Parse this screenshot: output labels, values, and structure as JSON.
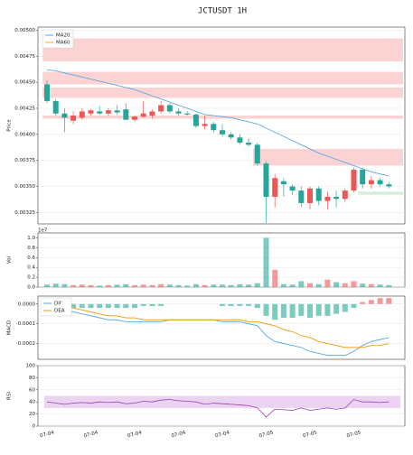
{
  "chart_data": [
    {
      "type": "candlestick",
      "title": "JCTUSDT  1H",
      "ylabel": "Price",
      "up_color": "#eb5757",
      "down_color": "#26a69a",
      "open": [
        0.00448,
        0.00432,
        0.0042,
        0.00413,
        0.00416,
        0.0042,
        0.00422,
        0.0042,
        0.00423,
        0.00424,
        0.00414,
        0.00417,
        0.00418,
        0.00422,
        0.00428,
        0.00422,
        0.0042,
        0.00419,
        0.00408,
        0.0041,
        0.00404,
        0.004,
        0.00397,
        0.00392,
        0.0039,
        0.00372,
        0.0034,
        0.00355,
        0.0035,
        0.00346,
        0.00334,
        0.00348,
        0.00336,
        0.0034,
        0.00338,
        0.00346,
        0.00366,
        0.00352,
        0.00356,
        0.00352
      ],
      "high": [
        0.00452,
        0.00434,
        0.00425,
        0.00422,
        0.00425,
        0.00424,
        0.00427,
        0.00425,
        0.00428,
        0.0043,
        0.00418,
        0.00432,
        0.00424,
        0.00432,
        0.0043,
        0.00425,
        0.00422,
        0.0042,
        0.00418,
        0.00412,
        0.0041,
        0.00402,
        0.004,
        0.00396,
        0.00392,
        0.00374,
        0.00362,
        0.00358,
        0.00352,
        0.0035,
        0.0035,
        0.0035,
        0.00345,
        0.00346,
        0.00348,
        0.00368,
        0.00368,
        0.0036,
        0.00358,
        0.00354
      ],
      "low": [
        0.0043,
        0.00418,
        0.00402,
        0.0041,
        0.00414,
        0.00418,
        0.00419,
        0.00418,
        0.00419,
        0.00414,
        0.00412,
        0.00416,
        0.00415,
        0.0042,
        0.0042,
        0.00418,
        0.00418,
        0.00406,
        0.00405,
        0.00402,
        0.00398,
        0.00395,
        0.0039,
        0.00388,
        0.0037,
        0.00315,
        0.0033,
        0.0034,
        0.00342,
        0.0033,
        0.00328,
        0.00332,
        0.00328,
        0.0033,
        0.00335,
        0.00344,
        0.00348,
        0.00348,
        0.0035,
        0.00348
      ],
      "close": [
        0.00432,
        0.0042,
        0.00416,
        0.00418,
        0.00422,
        0.00423,
        0.0042,
        0.00423,
        0.00421,
        0.00414,
        0.00417,
        0.0042,
        0.00422,
        0.00428,
        0.00422,
        0.0042,
        0.00419,
        0.00408,
        0.0041,
        0.00404,
        0.004,
        0.00397,
        0.00392,
        0.0039,
        0.00372,
        0.0034,
        0.00358,
        0.00352,
        0.00346,
        0.00334,
        0.00348,
        0.00336,
        0.0034,
        0.00338,
        0.00346,
        0.00366,
        0.00352,
        0.00356,
        0.00352,
        0.0035
      ],
      "series": [
        {
          "name": "MA20",
          "color": "#5aa9e6",
          "values": [
            0.00462,
            0.00461,
            0.00459,
            0.00457,
            0.00455,
            0.00453,
            0.00451,
            0.00449,
            0.00447,
            0.00445,
            0.00443,
            0.0044,
            0.00437,
            0.00434,
            0.00431,
            0.00428,
            0.00425,
            0.00422,
            0.00419,
            0.00418,
            0.00417,
            0.00416,
            0.00414,
            0.00412,
            0.0041,
            0.00406,
            0.00402,
            0.00398,
            0.00394,
            0.0039,
            0.00386,
            0.00382,
            0.00379,
            0.00376,
            0.00373,
            0.0037,
            0.00367,
            0.00364,
            0.00362,
            0.0036
          ]
        },
        {
          "name": "MA60",
          "color": "#f5a623",
          "values": [
            null,
            null,
            null,
            null,
            null,
            null,
            null,
            null,
            null,
            null,
            null,
            null,
            null,
            null,
            null,
            null,
            null,
            null,
            null,
            null,
            null,
            null,
            null,
            null,
            null,
            null,
            null,
            null,
            null,
            null,
            null,
            null,
            null,
            null,
            null,
            null,
            null,
            null,
            null,
            null
          ]
        }
      ],
      "zones": [
        {
          "range": [
            0.0047,
            0.00492
          ],
          "from": 0,
          "color": "#fbd3d3"
        },
        {
          "range": [
            0.00448,
            0.0046
          ],
          "from": 0,
          "color": "#fbd3d3"
        },
        {
          "range": [
            0.00435,
            0.00445
          ],
          "from": 0,
          "color": "#fbd3d3"
        },
        {
          "range": [
            0.00415,
            0.00418
          ],
          "from": 0,
          "color": "#fbd3d3"
        },
        {
          "range": [
            0.0037,
            0.00386
          ],
          "from": 24,
          "color": "#fbd3d3"
        },
        {
          "range": [
            0.00342,
            0.00345
          ],
          "from": 36,
          "color": "#d3efd9"
        }
      ],
      "ylim": [
        0.00314,
        0.00503
      ],
      "yticks": [
        0.00325,
        {
          "value": 0.0035,
          "label": "0.00350"
        },
        0.00375,
        {
          "value": 0.004,
          "label": "0.00400"
        },
        0.00425,
        {
          "value": 0.0045,
          "label": "0.00450"
        },
        0.00475,
        {
          "value": 0.005,
          "label": "0.00500"
        }
      ],
      "grid": true,
      "legend": "upper left"
    },
    {
      "type": "bar",
      "ylabel": "Vol",
      "offset_label": "1e7",
      "values": [
        0.05,
        0.07,
        0.06,
        0.04,
        0.05,
        0.04,
        0.03,
        0.04,
        0.05,
        0.06,
        0.04,
        0.05,
        0.04,
        0.06,
        0.05,
        0.04,
        0.03,
        0.06,
        0.04,
        0.05,
        0.05,
        0.04,
        0.06,
        0.05,
        0.08,
        1.0,
        0.35,
        0.06,
        0.05,
        0.12,
        0.08,
        0.06,
        0.15,
        0.1,
        0.08,
        0.12,
        0.07,
        0.06,
        0.05,
        0.04
      ],
      "ylim": [
        0,
        1.1
      ],
      "yticks": [
        {
          "value": 0,
          "label": "0.0"
        },
        0.2,
        0.4,
        0.6,
        0.8,
        {
          "value": 1,
          "label": "1.0"
        }
      ],
      "grid": true
    },
    {
      "type": "macd",
      "ylabel": "MACD",
      "series": [
        {
          "name": "Dif",
          "color": "#5aa9e6",
          "values": [
            -1e-05,
            -2e-05,
            -3e-05,
            -4e-05,
            -5e-05,
            -6e-05,
            -7e-05,
            -8e-05,
            -8e-05,
            -9e-05,
            -9e-05,
            -9e-05,
            -9e-05,
            -9e-05,
            -8e-05,
            -8e-05,
            -8e-05,
            -8e-05,
            -8e-05,
            -8e-05,
            -9e-05,
            -9e-05,
            -9e-05,
            -0.0001,
            -0.00011,
            -0.00016,
            -0.00019,
            -0.0002,
            -0.00021,
            -0.00022,
            -0.00024,
            -0.00025,
            -0.00026,
            -0.00026,
            -0.00026,
            -0.00024,
            -0.00021,
            -0.00019,
            -0.00018,
            -0.00017
          ]
        },
        {
          "name": "DEA",
          "color": "#f39c12",
          "values": [
            1e-05,
            0,
            -1e-05,
            -2e-05,
            -3e-05,
            -4e-05,
            -5e-05,
            -6e-05,
            -6e-05,
            -7e-05,
            -7e-05,
            -8e-05,
            -8e-05,
            -8e-05,
            -8e-05,
            -8e-05,
            -8e-05,
            -8e-05,
            -8e-05,
            -8e-05,
            -8e-05,
            -8e-05,
            -8e-05,
            -9e-05,
            -9e-05,
            -0.0001,
            -0.00011,
            -0.00013,
            -0.00014,
            -0.00016,
            -0.00017,
            -0.00019,
            -0.0002,
            -0.00021,
            -0.00022,
            -0.00022,
            -0.00022,
            -0.00021,
            -0.00021,
            -0.0002
          ]
        }
      ],
      "histogram": [
        -2e-05,
        -2e-05,
        -2e-05,
        -2e-05,
        -2e-05,
        -2e-05,
        -2e-05,
        -2e-05,
        -2e-05,
        -2e-05,
        -2e-05,
        -1e-05,
        -1e-05,
        -1e-05,
        0,
        0,
        0,
        0,
        0,
        0,
        -1e-05,
        -1e-05,
        -1e-05,
        -1e-05,
        -2e-05,
        -6e-05,
        -8e-05,
        -7e-05,
        -7e-05,
        -6e-05,
        -7e-05,
        -6e-05,
        -6e-05,
        -5e-05,
        -4e-05,
        -2e-05,
        1e-05,
        2e-05,
        3e-05,
        3e-05
      ],
      "hist_up_color": "#ef9a9a",
      "hist_down_color": "#7ccbbf",
      "ylim": [
        -0.00028,
        4e-05
      ],
      "yticks": [
        -0.0002,
        -0.0001,
        {
          "value": 0,
          "label": "0.0000"
        }
      ],
      "grid": true,
      "legend": "upper left"
    },
    {
      "type": "line",
      "ylabel": "RSI",
      "categories": [
        "07-04",
        null,
        null,
        null,
        null,
        "07-04",
        null,
        null,
        null,
        null,
        "07-04",
        null,
        null,
        null,
        null,
        "07-04",
        null,
        null,
        null,
        null,
        "07-04",
        null,
        null,
        null,
        null,
        "07-05",
        null,
        null,
        null,
        null,
        "07-05",
        null,
        null,
        null,
        null,
        "07-05",
        null,
        null,
        null,
        null
      ],
      "values": [
        40,
        38,
        36,
        38,
        39,
        38,
        40,
        39,
        40,
        37,
        38,
        41,
        40,
        43,
        44,
        42,
        41,
        40,
        36,
        38,
        37,
        36,
        35,
        34,
        30,
        15,
        28,
        27,
        26,
        30,
        26,
        28,
        30,
        28,
        30,
        44,
        40,
        40,
        39,
        40
      ],
      "color": "#9c3fb5",
      "band": [
        30,
        50
      ],
      "band_color": "#ecd3f2",
      "ylim": [
        0,
        100
      ],
      "yticks": [
        0,
        20,
        40,
        60,
        80,
        100
      ],
      "grid": true
    }
  ]
}
